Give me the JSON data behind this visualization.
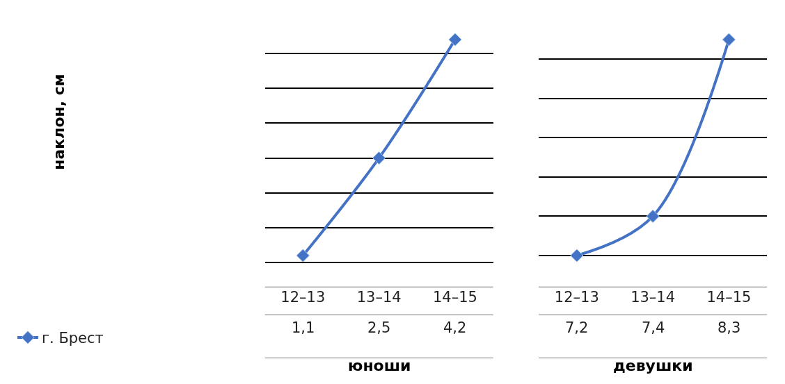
{
  "chart_data": [
    {
      "type": "line",
      "ylabel": "наклон, см",
      "xlabel": "юноши",
      "categories": [
        "12–13",
        "13–14",
        "14–15"
      ],
      "series": [
        {
          "name": "г. Брест",
          "color": "#4472c4",
          "values": [
            1.1,
            2.5,
            4.2
          ],
          "value_labels": [
            "1,1",
            "2,5",
            "4,2"
          ]
        }
      ],
      "grid": "y",
      "marker": "diamond",
      "legend": "bottom left",
      "tick_labels": "x"
    },
    {
      "type": "line",
      "xlabel": "девушки",
      "categories": [
        "12–13",
        "13–14",
        "14–15"
      ],
      "series": [
        {
          "color": "#4472c4",
          "values": [
            7.2,
            7.4,
            8.3
          ],
          "value_labels": [
            "7,2",
            "7,4",
            "8,3"
          ]
        }
      ],
      "grid": "y",
      "marker": "diamond",
      "tick_labels": "x"
    }
  ]
}
